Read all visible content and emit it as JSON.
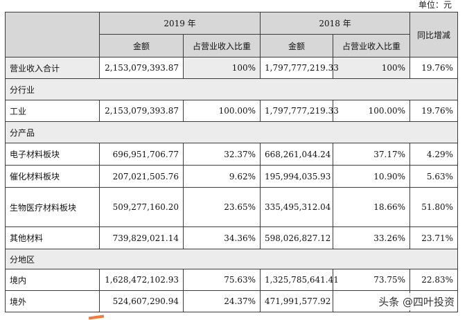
{
  "unit_label": "单位：元",
  "header": {
    "year_2019": "2019 年",
    "year_2018": "2018 年",
    "yoy": "同比增减",
    "amount_2019": "金额",
    "ratio_2019": "占营业收入比重",
    "amount_2018": "金额",
    "ratio_2018": "占营业收入比重"
  },
  "total": {
    "label": "营业收入合计",
    "amount_2019": "2,153,079,393.87",
    "ratio_2019": "100%",
    "amount_2018": "1,797,777,219.33",
    "ratio_2018": "100%",
    "yoy": "19.76%"
  },
  "sections": {
    "industry": "分行业",
    "product": "分产品",
    "region": "分地区"
  },
  "industry_rows": [
    {
      "label": "工业",
      "amount_2019": "2,153,079,393.87",
      "ratio_2019": "100.00%",
      "amount_2018": "1,797,777,219.33",
      "ratio_2018": "100.00%",
      "yoy": "19.76%"
    }
  ],
  "product_rows": [
    {
      "label": "电子材料板块",
      "amount_2019": "696,951,706.77",
      "ratio_2019": "32.37%",
      "amount_2018": "668,261,044.24",
      "ratio_2018": "37.17%",
      "yoy": "4.29%"
    },
    {
      "label": "催化材料板块",
      "amount_2019": "207,021,505.76",
      "ratio_2019": "9.62%",
      "amount_2018": "195,994,035.93",
      "ratio_2018": "10.90%",
      "yoy": "5.63%"
    },
    {
      "label": "生物医疗材料板块",
      "amount_2019": "509,277,160.20",
      "ratio_2019": "23.65%",
      "amount_2018": "335,495,312.04",
      "ratio_2018": "18.66%",
      "yoy": "51.80%"
    },
    {
      "label": "其他材料",
      "amount_2019": "739,829,021.14",
      "ratio_2019": "34.36%",
      "amount_2018": "598,026,827.12",
      "ratio_2018": "33.26%",
      "yoy": "23.71%"
    }
  ],
  "region_rows": [
    {
      "label": "境内",
      "amount_2019": "1,628,472,102.93",
      "ratio_2019": "75.63%",
      "amount_2018": "1,325,785,641.41",
      "ratio_2018": "73.75%",
      "yoy": "22.83%"
    },
    {
      "label": "境外",
      "amount_2019": "524,607,290.94",
      "ratio_2019": "24.37%",
      "amount_2018": "471,991,577.92",
      "ratio_2018": "",
      "yoy": ""
    }
  ],
  "watermark": "头条 @四叶投资"
}
